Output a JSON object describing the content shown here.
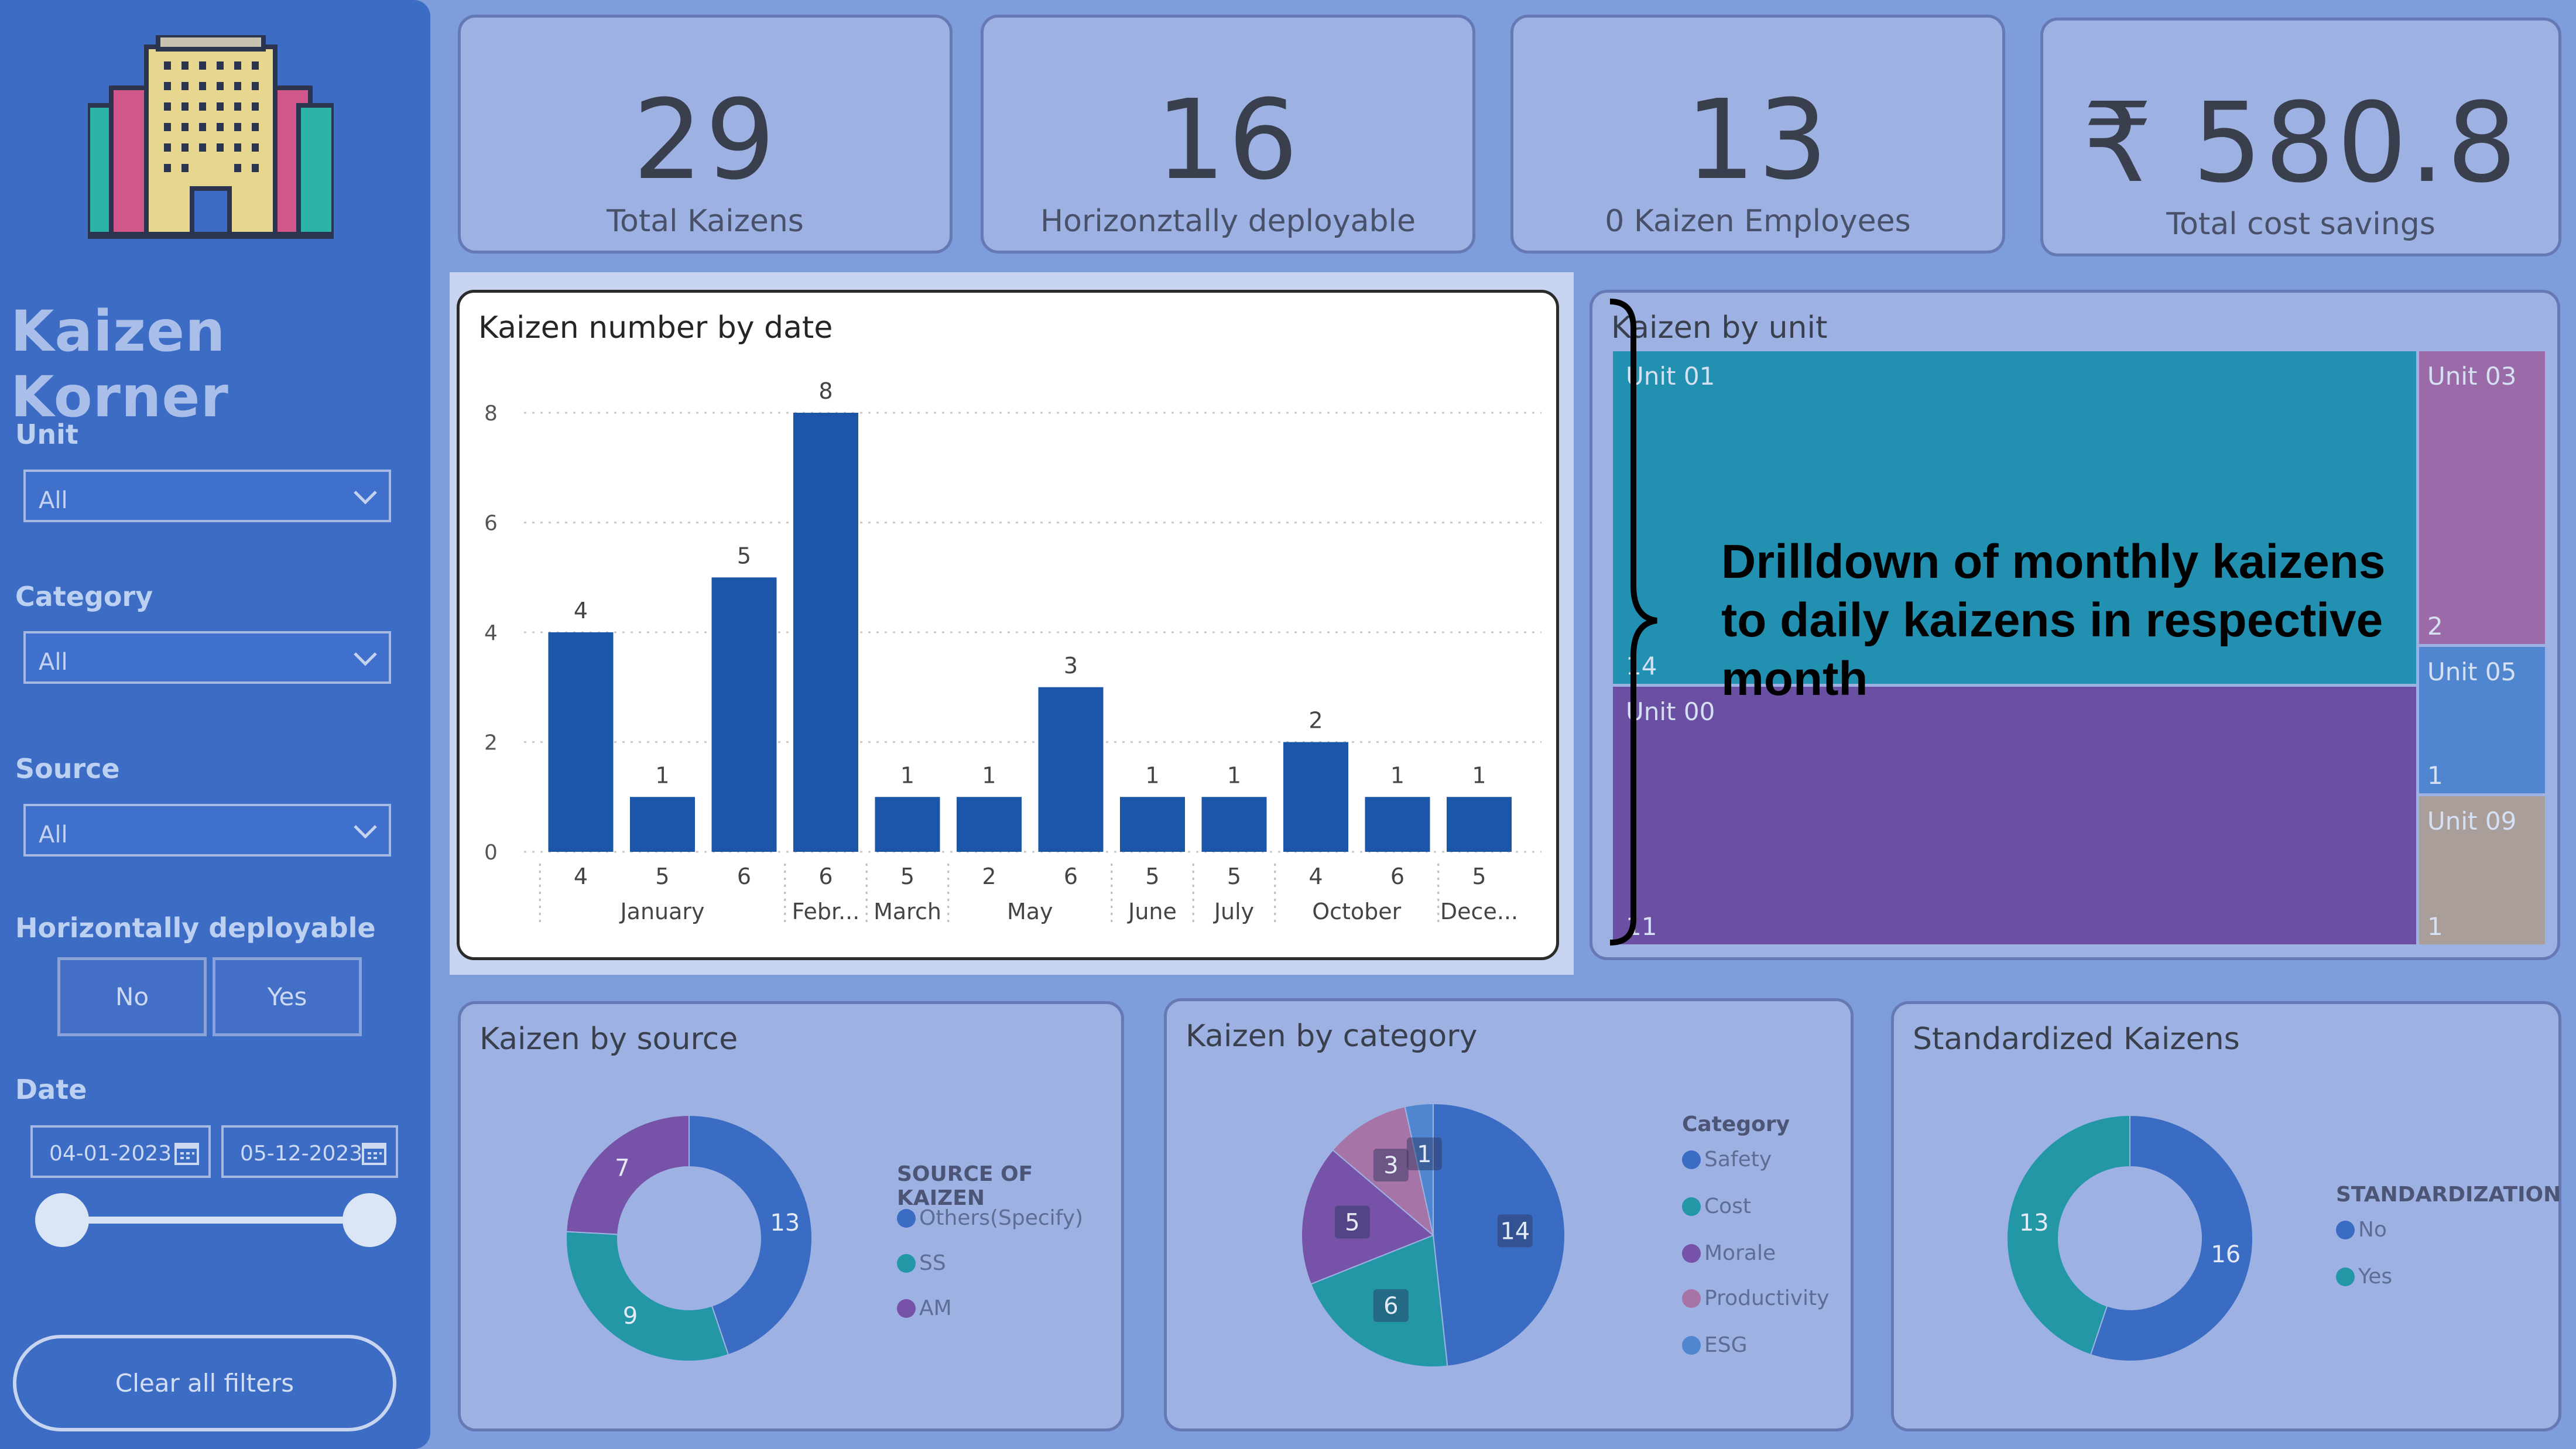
{
  "app": {
    "title": "Kaizen Korner"
  },
  "filters": {
    "unit": {
      "label": "Unit",
      "value": "All"
    },
    "category": {
      "label": "Category",
      "value": "All"
    },
    "source": {
      "label": "Source",
      "value": "All"
    },
    "horizontal": {
      "label": "Horizontally deployable",
      "options": [
        "No",
        "Yes"
      ]
    },
    "date": {
      "label": "Date",
      "start": "04-01-2023",
      "end": "05-12-2023"
    },
    "clear_label": "Clear all filters"
  },
  "kpis": [
    {
      "value": "29",
      "label": "Total Kaizens"
    },
    {
      "value": "16",
      "label": "Horizonztally deployable"
    },
    {
      "value": "13",
      "label": "0 Kaizen Employees"
    },
    {
      "value": "₹ 580.8",
      "label": "Total cost savings"
    }
  ],
  "bar_chart": {
    "title": "Kaizen number by date",
    "y_ticks": [
      "0",
      "2",
      "4",
      "6",
      "8"
    ],
    "months": [
      "January",
      "Febr...",
      "March",
      "May",
      "June",
      "July",
      "October",
      "Dece..."
    ]
  },
  "treemap": {
    "title": "Kaizen by unit",
    "cells": [
      {
        "name": "Unit 01",
        "value": "14",
        "color": "#2290b0"
      },
      {
        "name": "Unit 00",
        "value": "11",
        "color": "#6a4fa3"
      },
      {
        "name": "Unit 03",
        "value": "2",
        "color": "#9b6aa8"
      },
      {
        "name": "Unit 05",
        "value": "1",
        "color": "#4f86cf"
      },
      {
        "name": "Unit 09",
        "value": "1",
        "color": "#a99e9a"
      }
    ]
  },
  "annotation": "Drilldown of monthly kaizens to daily kaizens in respective month",
  "source_chart": {
    "title": "Kaizen by source",
    "legend_title": "SOURCE OF KAIZEN",
    "slices": [
      {
        "label": "Others(Specify)",
        "value": 13,
        "color": "#3b6cc3"
      },
      {
        "label": "SS",
        "value": 9,
        "color": "#2497a7"
      },
      {
        "label": "AM",
        "value": 7,
        "color": "#7652a8"
      }
    ]
  },
  "category_chart": {
    "title": "Kaizen by category",
    "legend_title": "Category",
    "slices": [
      {
        "label": "Safety",
        "value": 14,
        "color": "#3b6cc3"
      },
      {
        "label": "Cost",
        "value": 6,
        "color": "#2497a7"
      },
      {
        "label": "Morale",
        "value": 5,
        "color": "#7652a8"
      },
      {
        "label": "Productivity",
        "value": 3,
        "color": "#a774a8"
      },
      {
        "label": "ESG",
        "value": 1,
        "color": "#4f86cf"
      }
    ]
  },
  "standard_chart": {
    "title": "Standardized Kaizens",
    "legend_title": "STANDARDIZATION",
    "slices": [
      {
        "label": "No",
        "value": 16,
        "color": "#3b6cc3"
      },
      {
        "label": "Yes",
        "value": 13,
        "color": "#2497a7"
      }
    ]
  },
  "chart_data": [
    {
      "type": "bar",
      "title": "Kaizen number by date",
      "categories": [
        "January 4",
        "January 5",
        "January 6",
        "February 6",
        "March 5",
        "May 2",
        "May 6",
        "June 5",
        "July 5",
        "October 4",
        "October 6",
        "December 5"
      ],
      "day_labels": [
        "4",
        "5",
        "6",
        "6",
        "5",
        "2",
        "6",
        "5",
        "5",
        "4",
        "6",
        "5"
      ],
      "values": [
        4,
        1,
        5,
        8,
        1,
        1,
        3,
        1,
        1,
        2,
        1,
        1
      ],
      "ylim": [
        0,
        8
      ]
    },
    {
      "type": "pie",
      "title": "Kaizen by source",
      "categories": [
        "Others(Specify)",
        "SS",
        "AM"
      ],
      "values": [
        13,
        9,
        7
      ]
    },
    {
      "type": "pie",
      "title": "Kaizen by category",
      "categories": [
        "Safety",
        "Cost",
        "Morale",
        "Productivity",
        "ESG"
      ],
      "values": [
        14,
        6,
        5,
        3,
        1
      ]
    },
    {
      "type": "pie",
      "title": "Standardized Kaizens",
      "categories": [
        "No",
        "Yes"
      ],
      "values": [
        16,
        13
      ]
    }
  ]
}
